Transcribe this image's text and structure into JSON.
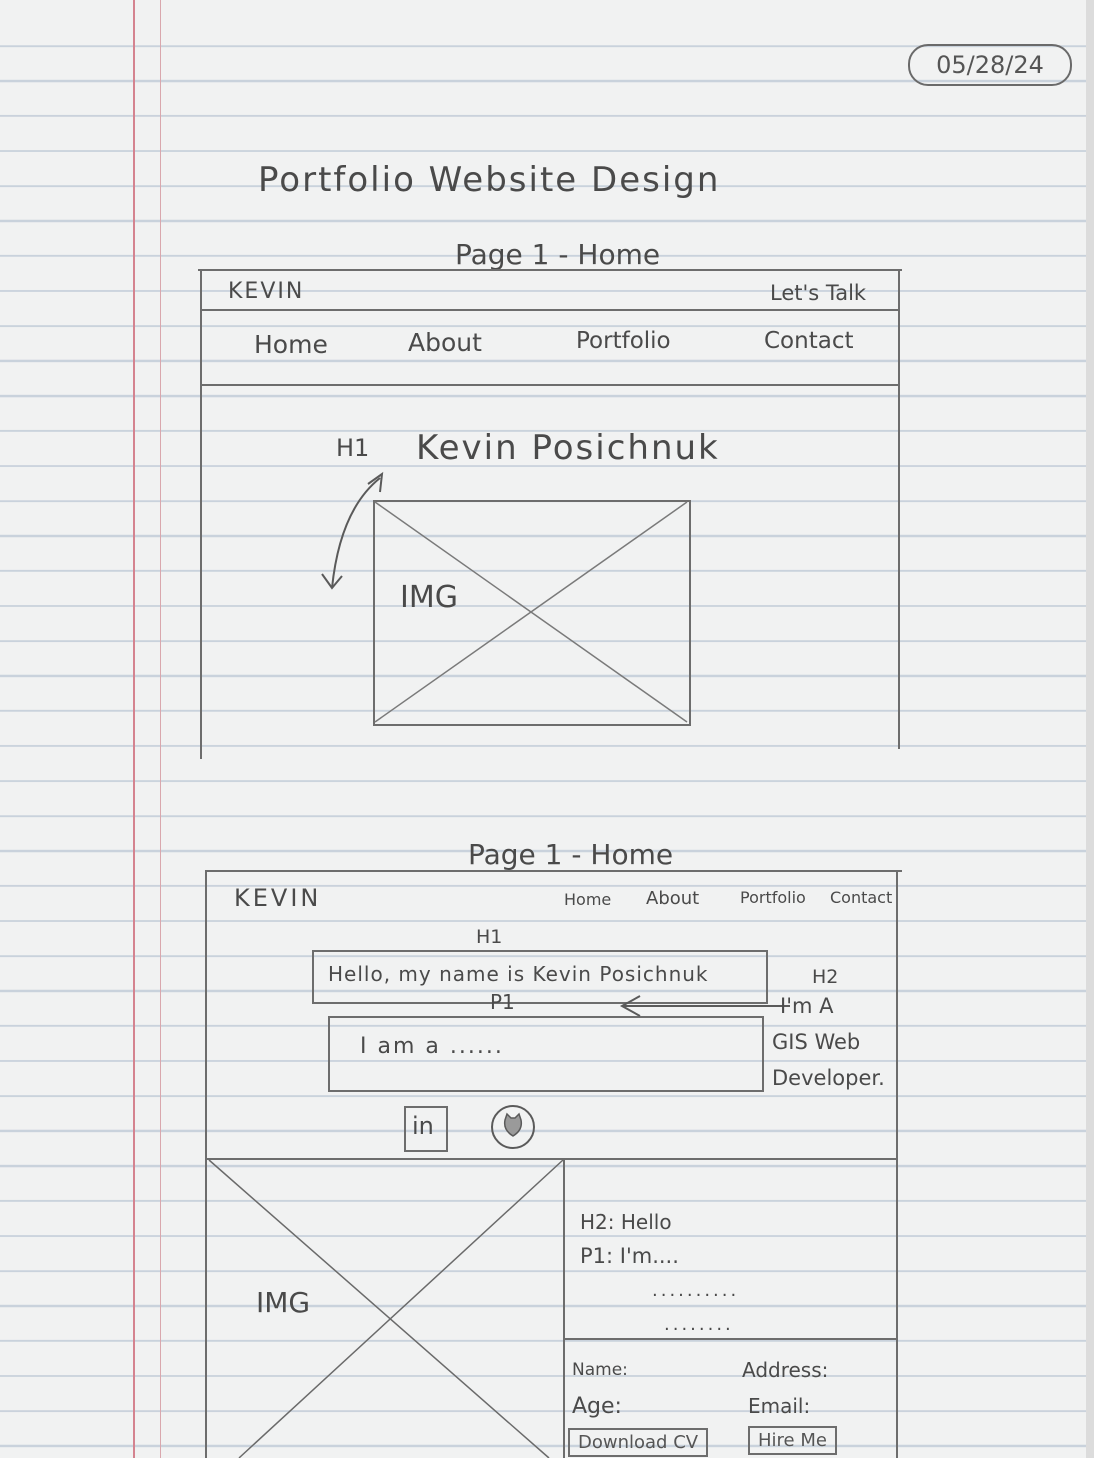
{
  "date": "05/28/24",
  "title": "Portfolio Website Design",
  "sketch1": {
    "page_label": "Page 1 - Home",
    "logo": "KEVIN",
    "cta": "Let's Talk",
    "nav": [
      "Home",
      "About",
      "Portfolio",
      "Contact"
    ],
    "h1_tag": "H1",
    "h1_text": "Kevin Posichnuk",
    "img_label": "IMG"
  },
  "sketch2": {
    "page_label": "Page 1 - Home",
    "logo": "KEVIN",
    "nav": [
      "Home",
      "About",
      "Portfolio",
      "Contact"
    ],
    "h1_tag": "H1",
    "h1_text": "Hello, my name is Kevin Posichnuk",
    "p1_tag": "P1",
    "p1_text": "I am a ......",
    "h2_tag": "H2",
    "h2_lines": [
      "I'm A",
      "GIS Web",
      "Developer."
    ],
    "icons": [
      "in",
      "github"
    ],
    "img_label": "IMG",
    "about": {
      "h2": "H2:  Hello",
      "p1": "P1:  I'm....",
      "dots1": "..........",
      "dots2": "........"
    },
    "info": {
      "name": "Name:",
      "address": "Address:",
      "age": "Age:",
      "email": "Email:"
    },
    "buttons": [
      "Download CV",
      "Hire Me"
    ]
  }
}
